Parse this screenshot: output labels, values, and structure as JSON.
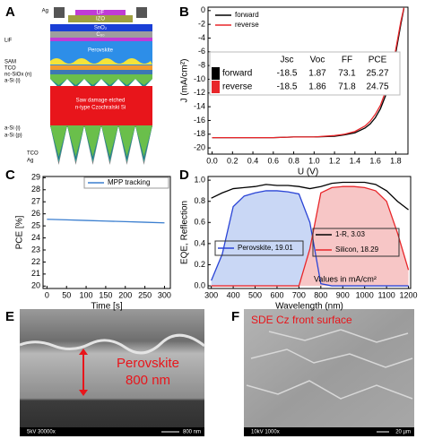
{
  "panel_labels": [
    "A",
    "B",
    "C",
    "D",
    "E",
    "F"
  ],
  "device_stack": {
    "ag_top": "Ag",
    "lif_top": "LiF",
    "izo": "IZO",
    "sno2": "SnO₂",
    "c60": "C₆₀",
    "lif": "LiF",
    "perovskite": "Perovskite",
    "sam": "SAM",
    "tco_front": "TCO",
    "nc_siox": "nc-SiOx (n)",
    "asi_i_front": "a-Si (i)",
    "bulk_line1": "Saw damage etched",
    "bulk_line2": "n-type Czochralski Si",
    "asi_i_rear": "a-Si (i)",
    "asi_p": "a-Si (p)",
    "tco_rear": "TCO",
    "ag_rear": "Ag"
  },
  "chart_data": [
    {
      "type": "line",
      "x_label": "U (V)",
      "y_label": "J (mA/cm²)",
      "x": [
        0,
        0.2,
        0.4,
        0.6,
        0.8,
        1.0,
        1.2,
        1.3,
        1.4,
        1.5,
        1.55,
        1.6,
        1.65,
        1.7,
        1.75,
        1.8,
        1.85,
        1.88
      ],
      "series": [
        {
          "name": "forward",
          "color": "#000000",
          "values": [
            -18.5,
            -18.5,
            -18.5,
            -18.5,
            -18.4,
            -18.4,
            -18.3,
            -18.1,
            -17.8,
            -17.1,
            -16.5,
            -15.6,
            -14.3,
            -12.4,
            -9.8,
            -6.2,
            -2.0,
            0.3
          ]
        },
        {
          "name": "reverse",
          "color": "#e8262a",
          "values": [
            -18.5,
            -18.5,
            -18.5,
            -18.5,
            -18.4,
            -18.4,
            -18.2,
            -18.0,
            -17.6,
            -16.8,
            -16.1,
            -15.1,
            -13.8,
            -11.8,
            -9.2,
            -5.7,
            -1.6,
            0.4
          ]
        }
      ],
      "xlim": [
        -0.04,
        1.92
      ],
      "ylim": [
        -20.9,
        0.5
      ],
      "xticks": [
        {
          "value": 0,
          "label": "0.0"
        },
        0.2,
        0.4,
        0.6,
        0.8,
        {
          "value": 1,
          "label": "1.0"
        },
        1.2,
        1.4,
        1.6,
        1.8
      ],
      "yticks": [
        0,
        -2,
        -4,
        -6,
        -8,
        -10,
        -12,
        -14,
        -16,
        -18,
        -20
      ],
      "legend": "upper left",
      "table": {
        "columns": [
          "Jsc",
          "Voc",
          "FF",
          "PCE"
        ],
        "rows": [
          {
            "label": "forward",
            "color": "#000000",
            "cells": [
              -18.5,
              1.87,
              73.1,
              25.27
            ]
          },
          {
            "label": "reverse",
            "color": "#e8262a",
            "cells": [
              -18.5,
              1.86,
              71.8,
              24.75
            ]
          }
        ]
      }
    },
    {
      "type": "line",
      "x_label": "Time [s]",
      "y_label": "PCE [%]",
      "x": [
        0,
        50,
        100,
        150,
        200,
        250,
        300
      ],
      "series": [
        {
          "name": "MPP tracking",
          "color": "#3a7ecf",
          "values": [
            25.55,
            25.5,
            25.45,
            25.4,
            25.35,
            25.3,
            25.25
          ]
        }
      ],
      "xlim": [
        -10,
        315
      ],
      "ylim": [
        19.8,
        29.1
      ],
      "xticks": [
        0,
        50,
        100,
        150,
        200,
        250,
        300
      ],
      "yticks": [
        20,
        21,
        22,
        23,
        24,
        25,
        26,
        27,
        28,
        29
      ],
      "legend": "upper right"
    },
    {
      "type": "area",
      "x_label": "Wavelength (nm)",
      "y_label": "EQE, Reflection",
      "annotation": "Values in mA/cm²",
      "x": [
        300,
        350,
        400,
        450,
        500,
        550,
        600,
        650,
        700,
        750,
        800,
        850,
        900,
        950,
        1000,
        1050,
        1100,
        1150,
        1200
      ],
      "series": [
        {
          "name": "1-R, 3.03",
          "color": "#000000",
          "fill": false,
          "values": [
            0.83,
            0.88,
            0.92,
            0.93,
            0.94,
            0.96,
            0.95,
            0.95,
            0.94,
            0.92,
            0.94,
            0.97,
            0.98,
            0.98,
            0.98,
            0.96,
            0.9,
            0.8,
            0.72
          ]
        },
        {
          "name": "Perovskite, 19.01",
          "color": "#2a44d6",
          "fill": true,
          "fill_color": "#c9d7f5",
          "values": [
            0.05,
            0.3,
            0.75,
            0.85,
            0.88,
            0.9,
            0.9,
            0.89,
            0.87,
            0.6,
            0.02,
            0,
            0,
            0,
            0,
            0,
            0,
            0,
            0
          ]
        },
        {
          "name": "Silicon, 18.29",
          "color": "#e8262a",
          "fill": true,
          "fill_color": "#f7c6c6",
          "values": [
            0,
            0,
            0,
            0,
            0,
            0,
            0,
            0,
            0,
            0.35,
            0.88,
            0.93,
            0.94,
            0.94,
            0.93,
            0.9,
            0.8,
            0.5,
            0.15
          ]
        }
      ],
      "xlim": [
        285,
        1210
      ],
      "ylim": [
        -0.025,
        1.035
      ],
      "xticks": [
        300,
        400,
        500,
        600,
        700,
        800,
        900,
        1000,
        1100,
        1200
      ],
      "yticks": [
        {
          "value": 0,
          "label": "0.0"
        },
        0.2,
        0.4,
        0.6,
        0.8,
        {
          "value": 1,
          "label": "1.0"
        }
      ]
    }
  ],
  "sem_images": [
    {
      "annotation": [
        "Perovskite",
        "800 nm"
      ],
      "footer": "5kV 30000x",
      "scale_bar": "800 nm"
    },
    {
      "annotation": [
        "SDE Cz front surface"
      ],
      "footer": "10kV 1000x",
      "scale_bar": "20 µm"
    }
  ]
}
